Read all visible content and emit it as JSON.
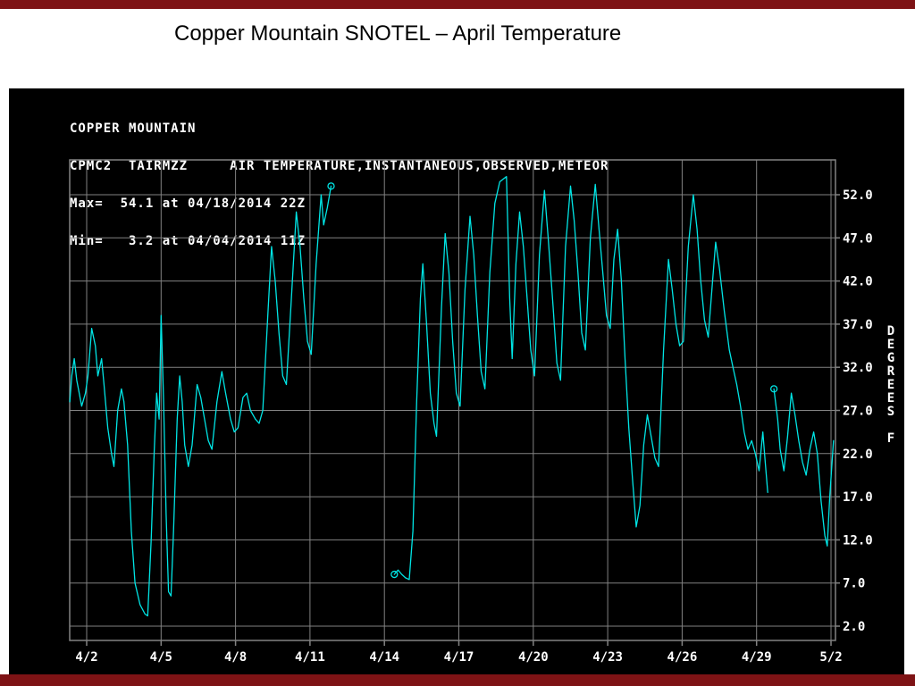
{
  "slide": {
    "title": "Copper Mountain SNOTEL – April Temperature",
    "accent_color": "#7e1315"
  },
  "chart_header": {
    "line1": "COPPER MOUNTAIN",
    "line2": "CPMC2  TAIRMZZ     AIR TEMPERATURE,INSTANTANEOUS,OBSERVED,METEOR",
    "line3": "Max=  54.1 at 04/18/2014 22Z",
    "line4": "Min=   3.2 at 04/04/2014 11Z"
  },
  "chart_data": {
    "type": "line",
    "title": "Copper Mountain SNOTEL CPMC2 TAIRMZZ - Air Temperature, Instantaneous, Observed, Meteor",
    "station": "COPPER MOUNTAIN",
    "max": {
      "value": 54.1,
      "time": "04/18/2014 22Z"
    },
    "min": {
      "value": 3.2,
      "time": "04/04/2014 11Z"
    },
    "line_color": "#00e5e5",
    "grid_color": "#828282",
    "background": "#000000",
    "legend_position": "none",
    "grid": true,
    "ylim": [
      0.3,
      56.0
    ],
    "xlim_days": [
      1.32,
      32.18
    ],
    "y_axis": {
      "title": "DEGREES F",
      "values": [
        52,
        47,
        42,
        37,
        32,
        27,
        22,
        17,
        12,
        7,
        2
      ],
      "labels": [
        "52.0",
        "47.0",
        "42.0",
        "37.0",
        "32.0",
        "27.0",
        "22.0",
        "17.0",
        "12.0",
        "7.0",
        "2.0"
      ]
    },
    "x_axis": {
      "title": "",
      "days": [
        2,
        5,
        8,
        11,
        14,
        17,
        20,
        23,
        26,
        29,
        32
      ],
      "labels": [
        "4/2",
        "4/5",
        "4/8",
        "4/11",
        "4/14",
        "4/17",
        "4/20",
        "4/23",
        "4/26",
        "4/29",
        "5/2"
      ]
    },
    "units": "degrees F",
    "x_units": "date (April 2014, day offset from April 1)",
    "gap_markers": [
      [
        11.85,
        53
      ],
      [
        14.4,
        8
      ],
      [
        29.7,
        29.5
      ]
    ],
    "series": [
      {
        "name": "air-temperature-segment-1",
        "points": [
          [
            1.32,
            28
          ],
          [
            1.4,
            31
          ],
          [
            1.5,
            33
          ],
          [
            1.6,
            30.5
          ],
          [
            1.7,
            29
          ],
          [
            1.8,
            27.5
          ],
          [
            1.95,
            29
          ],
          [
            2.05,
            31
          ],
          [
            2.2,
            36.5
          ],
          [
            2.35,
            34.5
          ],
          [
            2.45,
            31
          ],
          [
            2.6,
            33
          ],
          [
            2.7,
            30
          ],
          [
            2.85,
            25
          ],
          [
            3.0,
            22
          ],
          [
            3.1,
            20.5
          ],
          [
            3.25,
            27
          ],
          [
            3.4,
            29.5
          ],
          [
            3.5,
            28
          ],
          [
            3.65,
            23
          ],
          [
            3.8,
            13
          ],
          [
            3.95,
            7
          ],
          [
            4.15,
            4.5
          ],
          [
            4.35,
            3.4
          ],
          [
            4.46,
            3.2
          ],
          [
            4.6,
            12
          ],
          [
            4.72,
            22
          ],
          [
            4.82,
            29
          ],
          [
            4.92,
            26
          ],
          [
            5.0,
            38
          ],
          [
            5.1,
            28
          ],
          [
            5.2,
            15
          ],
          [
            5.3,
            6
          ],
          [
            5.4,
            5.5
          ],
          [
            5.5,
            13
          ],
          [
            5.65,
            26
          ],
          [
            5.75,
            31
          ],
          [
            5.85,
            28
          ],
          [
            5.95,
            23
          ],
          [
            6.1,
            20.5
          ],
          [
            6.25,
            23
          ],
          [
            6.45,
            30
          ],
          [
            6.6,
            28.5
          ],
          [
            6.75,
            26
          ],
          [
            6.9,
            23.5
          ],
          [
            7.05,
            22.5
          ],
          [
            7.25,
            28
          ],
          [
            7.45,
            31.5
          ],
          [
            7.6,
            29
          ],
          [
            7.8,
            26
          ],
          [
            7.95,
            24.5
          ],
          [
            8.1,
            25
          ],
          [
            8.3,
            28.5
          ],
          [
            8.45,
            29
          ],
          [
            8.6,
            27
          ],
          [
            8.8,
            26
          ],
          [
            8.95,
            25.5
          ],
          [
            9.1,
            27
          ],
          [
            9.3,
            38
          ],
          [
            9.45,
            46
          ],
          [
            9.6,
            42
          ],
          [
            9.75,
            36
          ],
          [
            9.9,
            31
          ],
          [
            10.05,
            30
          ],
          [
            10.25,
            40
          ],
          [
            10.45,
            50
          ],
          [
            10.6,
            46
          ],
          [
            10.75,
            40
          ],
          [
            10.9,
            35
          ],
          [
            11.05,
            33.5
          ],
          [
            11.25,
            44
          ],
          [
            11.45,
            52
          ],
          [
            11.55,
            48.5
          ],
          [
            11.7,
            50.5
          ],
          [
            11.85,
            53
          ]
        ]
      },
      {
        "name": "air-temperature-segment-2",
        "points": [
          [
            14.4,
            8
          ],
          [
            14.55,
            8.5
          ],
          [
            14.7,
            8
          ],
          [
            14.85,
            7.6
          ],
          [
            15.0,
            7.4
          ],
          [
            15.15,
            13
          ],
          [
            15.3,
            28
          ],
          [
            15.45,
            40
          ],
          [
            15.55,
            44
          ],
          [
            15.7,
            37
          ],
          [
            15.85,
            29
          ],
          [
            16.0,
            25.5
          ],
          [
            16.1,
            24
          ],
          [
            16.3,
            39
          ],
          [
            16.45,
            47.5
          ],
          [
            16.6,
            43
          ],
          [
            16.75,
            35
          ],
          [
            16.9,
            29
          ],
          [
            17.05,
            27.5
          ],
          [
            17.25,
            41
          ],
          [
            17.45,
            49.5
          ],
          [
            17.6,
            45
          ],
          [
            17.75,
            38
          ],
          [
            17.9,
            31.5
          ],
          [
            18.05,
            29.5
          ],
          [
            18.25,
            43
          ],
          [
            18.45,
            51
          ],
          [
            18.65,
            53.5
          ],
          [
            18.92,
            54.1
          ],
          [
            19.05,
            40
          ],
          [
            19.15,
            33
          ],
          [
            19.3,
            44
          ],
          [
            19.45,
            50
          ],
          [
            19.6,
            46
          ],
          [
            19.75,
            40
          ],
          [
            19.9,
            34
          ],
          [
            20.05,
            31
          ],
          [
            20.25,
            45
          ],
          [
            20.45,
            52.5
          ],
          [
            20.6,
            47
          ],
          [
            20.8,
            39
          ],
          [
            20.95,
            32.5
          ],
          [
            21.1,
            30.5
          ],
          [
            21.3,
            46
          ],
          [
            21.5,
            53
          ],
          [
            21.65,
            49
          ],
          [
            21.8,
            43
          ],
          [
            21.95,
            36
          ],
          [
            22.1,
            34
          ],
          [
            22.3,
            47
          ],
          [
            22.5,
            53.2
          ],
          [
            22.65,
            48
          ],
          [
            22.8,
            43
          ],
          [
            22.95,
            38
          ],
          [
            23.1,
            36.5
          ],
          [
            23.25,
            44.5
          ],
          [
            23.4,
            48
          ],
          [
            23.55,
            42
          ],
          [
            23.7,
            33
          ],
          [
            23.85,
            25
          ],
          [
            24.0,
            19
          ],
          [
            24.15,
            13.5
          ],
          [
            24.3,
            16
          ],
          [
            24.45,
            23
          ],
          [
            24.6,
            26.5
          ],
          [
            24.75,
            24
          ],
          [
            24.9,
            21.5
          ],
          [
            25.05,
            20.5
          ],
          [
            25.25,
            34
          ],
          [
            25.45,
            44.5
          ],
          [
            25.6,
            41
          ],
          [
            25.75,
            37
          ],
          [
            25.9,
            34.5
          ],
          [
            26.05,
            35
          ],
          [
            26.25,
            46
          ],
          [
            26.45,
            52
          ],
          [
            26.6,
            48
          ],
          [
            26.75,
            42
          ],
          [
            26.9,
            37.5
          ],
          [
            27.05,
            35.5
          ],
          [
            27.2,
            41
          ],
          [
            27.35,
            46.5
          ],
          [
            27.5,
            43.5
          ],
          [
            27.7,
            38.5
          ],
          [
            27.9,
            34
          ],
          [
            28.05,
            32
          ],
          [
            28.2,
            30
          ],
          [
            28.35,
            27.5
          ],
          [
            28.5,
            24.5
          ],
          [
            28.65,
            22.5
          ],
          [
            28.8,
            23.5
          ],
          [
            28.95,
            22
          ],
          [
            29.1,
            20
          ],
          [
            29.25,
            24.5
          ],
          [
            29.35,
            21
          ],
          [
            29.45,
            17.5
          ]
        ]
      },
      {
        "name": "air-temperature-segment-3",
        "points": [
          [
            29.7,
            29.5
          ],
          [
            29.85,
            26
          ],
          [
            29.95,
            22.5
          ],
          [
            30.1,
            20
          ],
          [
            30.25,
            24
          ],
          [
            30.4,
            29
          ],
          [
            30.55,
            26.5
          ],
          [
            30.7,
            23.5
          ],
          [
            30.85,
            21
          ],
          [
            31.0,
            19.5
          ],
          [
            31.15,
            22.5
          ],
          [
            31.3,
            24.5
          ],
          [
            31.45,
            22
          ],
          [
            31.6,
            16.5
          ],
          [
            31.75,
            12.5
          ],
          [
            31.85,
            11.3
          ],
          [
            31.95,
            17
          ],
          [
            32.1,
            23.5
          ]
        ]
      }
    ]
  }
}
